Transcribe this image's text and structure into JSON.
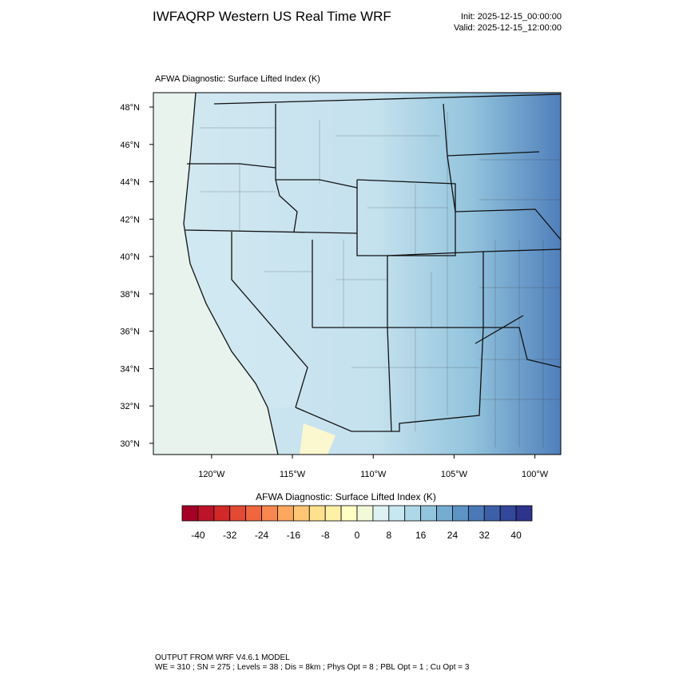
{
  "header": {
    "title": "IWFAQRP Western US Real Time WRF",
    "init": "Init: 2025-12-15_00:00:00",
    "valid": "Valid: 2025-12-15_12:00:00"
  },
  "map": {
    "title": "AFWA Diagnostic: Surface Lifted Index   (K)",
    "lonlim": [
      -123.6,
      -98.4
    ],
    "latlim": [
      29.4,
      48.77
    ],
    "lonticks": [
      {
        "value": -120,
        "label": "120°W"
      },
      {
        "value": -115,
        "label": "115°W"
      },
      {
        "value": -110,
        "label": "110°W"
      },
      {
        "value": -105,
        "label": "105°W"
      },
      {
        "value": -100,
        "label": "100°W"
      }
    ],
    "latticks": [
      {
        "value": 30,
        "label": "30°N"
      },
      {
        "value": 32,
        "label": "32°N"
      },
      {
        "value": 34,
        "label": "34°N"
      },
      {
        "value": 36,
        "label": "36°N"
      },
      {
        "value": 38,
        "label": "38°N"
      },
      {
        "value": 40,
        "label": "40°N"
      },
      {
        "value": 42,
        "label": "42°N"
      },
      {
        "value": 44,
        "label": "44°N"
      },
      {
        "value": 46,
        "label": "46°N"
      },
      {
        "value": 48,
        "label": "48°N"
      }
    ]
  },
  "colorbar": {
    "title": "AFWA Diagnostic: Surface Lifted Index  (K)",
    "range": [
      -44,
      44
    ],
    "colors": [
      "#a50026",
      "#be1429",
      "#d3282a",
      "#e34a33",
      "#f0663f",
      "#f7874f",
      "#fca75e",
      "#fdc674",
      "#fee08e",
      "#fff0a8",
      "#ffffc4",
      "#f1f9d8",
      "#dff2f3",
      "#c9e7f0",
      "#aed8e8",
      "#93c4dd",
      "#77acd2",
      "#5e93c5",
      "#4b79b7",
      "#3c60a8",
      "#33489b",
      "#2e338c"
    ],
    "ticks": [
      -40,
      -32,
      -24,
      -16,
      -8,
      0,
      8,
      16,
      24,
      32,
      40
    ]
  },
  "footer": {
    "line1": "OUTPUT FROM WRF V4.6.1 MODEL",
    "line2": "WE = 310 ; SN = 275 ; Levels = 38 ; Dis = 8km ; Phys Opt = 8 ; PBL Opt = 1 ; Cu Opt = 3"
  }
}
